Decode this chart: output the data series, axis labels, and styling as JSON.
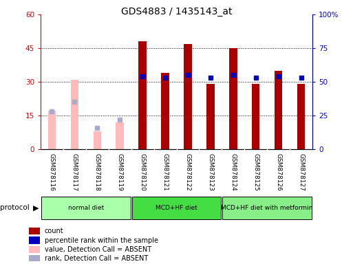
{
  "title": "GDS4883 / 1435143_at",
  "samples": [
    "GSM878116",
    "GSM878117",
    "GSM878118",
    "GSM878119",
    "GSM878120",
    "GSM878121",
    "GSM878122",
    "GSM878123",
    "GSM878124",
    "GSM878125",
    "GSM878126",
    "GSM878127"
  ],
  "count_values": [
    null,
    null,
    null,
    null,
    48,
    34,
    47,
    29,
    45,
    29,
    35,
    29
  ],
  "percentile_values": [
    null,
    null,
    null,
    null,
    54,
    53,
    55,
    53,
    55,
    53,
    54,
    53
  ],
  "absent_value": [
    17,
    31,
    8,
    12,
    null,
    null,
    null,
    null,
    null,
    null,
    null,
    null
  ],
  "absent_rank": [
    28,
    35,
    16,
    22,
    null,
    null,
    null,
    null,
    null,
    null,
    null,
    null
  ],
  "ylim_left": [
    0,
    60
  ],
  "ylim_right": [
    0,
    100
  ],
  "yticks_left": [
    0,
    15,
    30,
    45,
    60
  ],
  "yticks_right": [
    0,
    25,
    50,
    75,
    100
  ],
  "ytick_labels_left": [
    "0",
    "15",
    "30",
    "45",
    "60"
  ],
  "ytick_labels_right": [
    "0",
    "25",
    "50",
    "75",
    "100%"
  ],
  "groups": [
    {
      "label": "normal diet",
      "start": 0,
      "end": 4,
      "color": "#aaffaa"
    },
    {
      "label": "MCD+HF diet",
      "start": 4,
      "end": 8,
      "color": "#44dd44"
    },
    {
      "label": "MCD+HF diet with metformin",
      "start": 8,
      "end": 12,
      "color": "#88ee88"
    }
  ],
  "bar_color_count": "#aa0000",
  "bar_color_absent": "#ffbbbb",
  "dot_color_percentile": "#0000bb",
  "dot_color_absent_rank": "#aaaacc",
  "xticklabel_bg": "#cccccc",
  "bar_width": 0.35,
  "legend_items": [
    {
      "color": "#aa0000",
      "label": "count"
    },
    {
      "color": "#0000bb",
      "label": "percentile rank within the sample"
    },
    {
      "color": "#ffbbbb",
      "label": "value, Detection Call = ABSENT"
    },
    {
      "color": "#aaaacc",
      "label": "rank, Detection Call = ABSENT"
    }
  ]
}
